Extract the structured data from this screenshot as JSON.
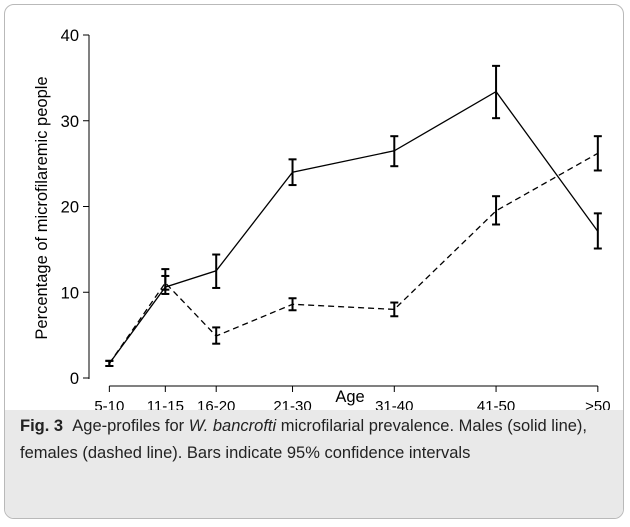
{
  "chart_data": {
    "type": "line",
    "title": "",
    "xlabel": "Age",
    "ylabel": "Percentage of microfilaremic people",
    "categories": [
      "5-10",
      "11-15",
      "16-20",
      "21-30",
      "31-40",
      "41-50",
      ">50"
    ],
    "x_positions": [
      7.5,
      13,
      18,
      25.5,
      35.5,
      45.5,
      55.5
    ],
    "xlim": [
      5.5,
      56.5
    ],
    "ylim": [
      0,
      40
    ],
    "yticks": [
      0,
      10,
      20,
      30,
      40
    ],
    "series": [
      {
        "line_style": "solid",
        "values": [
          1.7,
          10.6,
          12.5,
          24.0,
          26.5,
          33.4,
          17.1
        ],
        "ci_low": [
          1.4,
          9.8,
          10.5,
          22.5,
          24.7,
          30.3,
          15.1
        ],
        "ci_high": [
          2.0,
          12.7,
          14.4,
          25.5,
          28.2,
          36.4,
          19.2
        ]
      },
      {
        "line_style": "dashed",
        "values": [
          1.7,
          11.1,
          4.9,
          8.6,
          8.0,
          19.5,
          26.2
        ],
        "ci_low": [
          1.4,
          10.3,
          4.0,
          7.9,
          7.2,
          17.9,
          24.2
        ],
        "ci_high": [
          2.0,
          11.9,
          5.9,
          9.3,
          8.8,
          21.2,
          28.2
        ]
      }
    ],
    "grid": false
  },
  "caption": {
    "label": "Fig. 3",
    "text_before_italic": "Age-profiles for ",
    "italic": "W. bancrofti",
    "text_after_italic": " microfilarial prevalence. Males (solid line), females (dashed line). Bars indicate 95% confidence intervals"
  }
}
